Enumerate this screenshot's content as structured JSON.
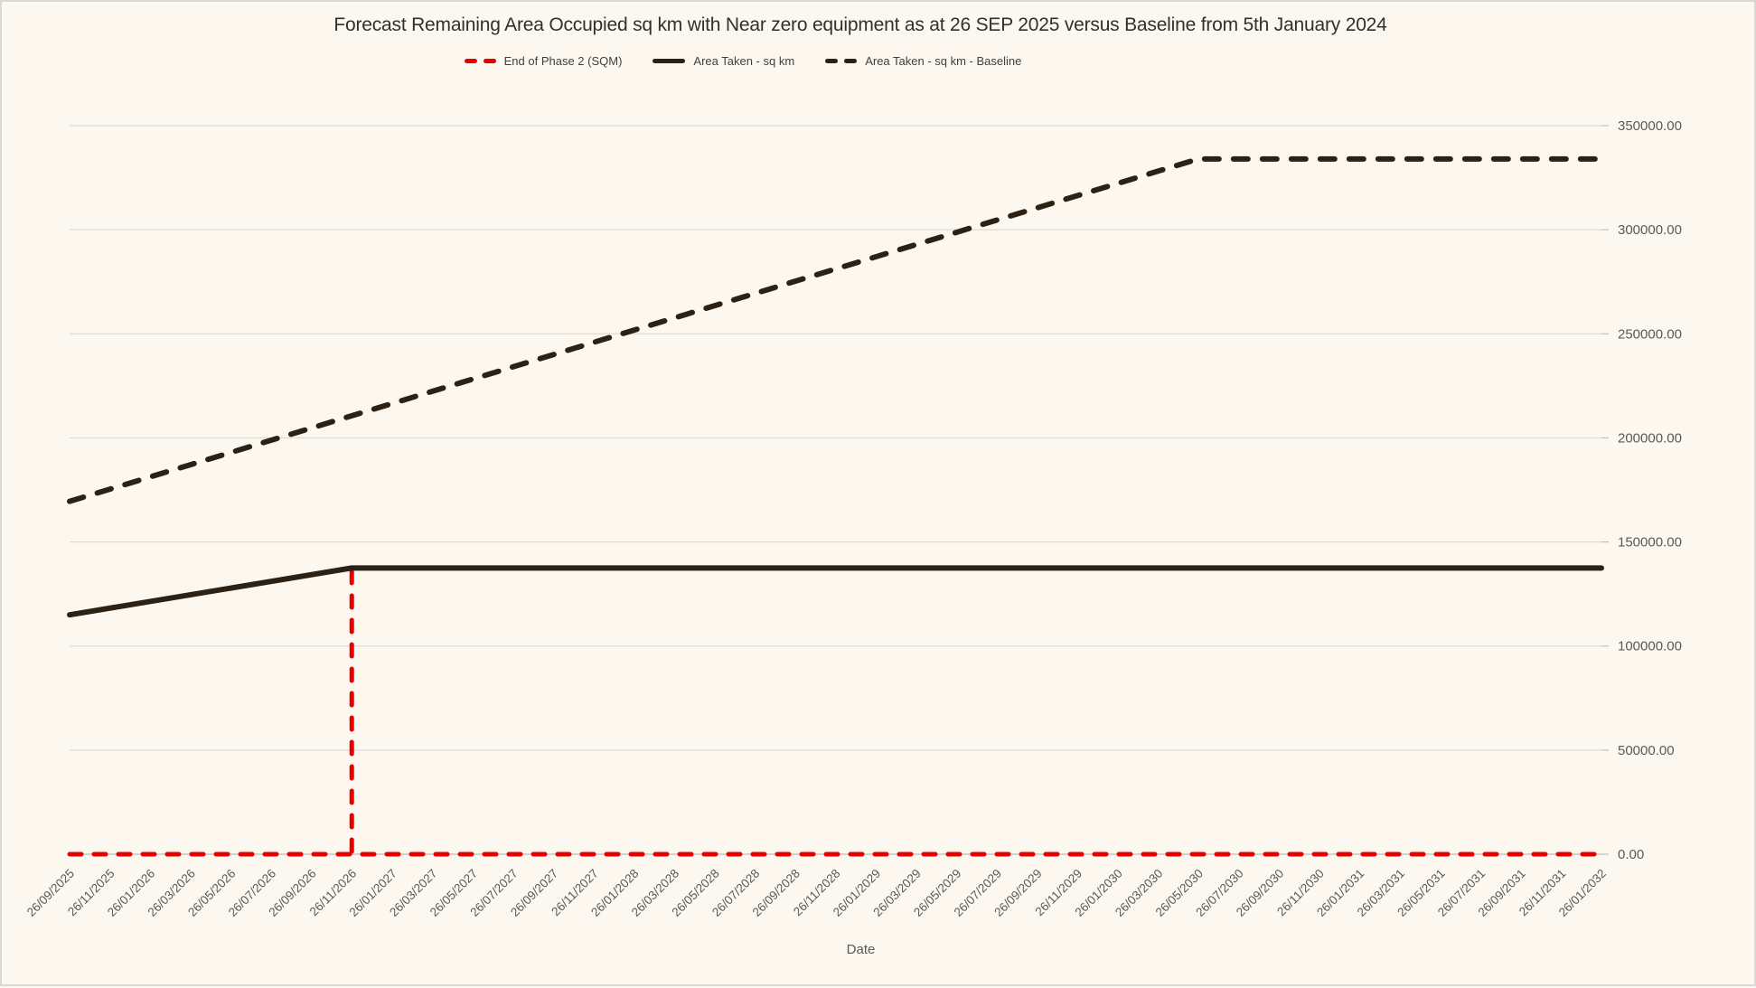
{
  "window": {
    "background_color": "#FDF8EF",
    "border_color": "#D8D8D8"
  },
  "chart_data": {
    "type": "line",
    "title": "Forecast Remaining Area Occupied sq km with Near zero equipment as at 26 SEP 2025 versus Baseline from 5th January 2024",
    "xlabel": "Date",
    "ylabel": "",
    "ylim": [
      0,
      350000
    ],
    "ytick_labels": [
      "0.00",
      "50000.00",
      "100000.00",
      "150000.00",
      "200000.00",
      "250000.00",
      "300000.00",
      "350000.00"
    ],
    "grid": "horizontal",
    "legend_position": "top-center",
    "axis_text_color": "#595959",
    "gridline_color": "#DBDBD6",
    "axisline_color": "#BFBFBF",
    "categories": [
      "26/09/2025",
      "26/11/2025",
      "26/01/2026",
      "26/03/2026",
      "26/05/2026",
      "26/07/2026",
      "26/09/2026",
      "26/11/2026",
      "26/01/2027",
      "26/03/2027",
      "26/05/2027",
      "26/07/2027",
      "26/09/2027",
      "26/11/2027",
      "26/01/2028",
      "26/03/2028",
      "26/05/2028",
      "26/07/2028",
      "26/09/2028",
      "26/11/2028",
      "26/01/2029",
      "26/03/2029",
      "26/05/2029",
      "26/07/2029",
      "26/09/2029",
      "26/11/2029",
      "26/01/2030",
      "26/03/2030",
      "26/05/2030",
      "26/07/2030",
      "26/09/2030",
      "26/11/2030",
      "26/01/2031",
      "26/03/2031",
      "26/05/2031",
      "26/07/2031",
      "26/09/2031",
      "26/11/2031",
      "26/01/2032"
    ],
    "series": [
      {
        "name": "End of Phase 2 (SQM)",
        "color": "#E80000",
        "line_style": "dashed",
        "shape": "spike",
        "base_value": 0,
        "spike_category": "26/11/2026",
        "spike_value": 137500
      },
      {
        "name": "Area Taken - sq km",
        "color": "#2B2114",
        "line_style": "solid",
        "shape": "keypoints",
        "keypoints": [
          {
            "category": "26/09/2025",
            "value": 115000
          },
          {
            "category": "26/11/2026",
            "value": 137500
          },
          {
            "category": "26/01/2032",
            "value": 137500
          }
        ]
      },
      {
        "name": "Area Taken - sq km - Baseline",
        "color": "#2B2114",
        "line_style": "dashed",
        "shape": "keypoints",
        "keypoints": [
          {
            "category": "26/09/2025",
            "value": 169500
          },
          {
            "category": "26/05/2030",
            "value": 334000
          },
          {
            "category": "26/01/2032",
            "value": 334000
          }
        ]
      }
    ]
  }
}
